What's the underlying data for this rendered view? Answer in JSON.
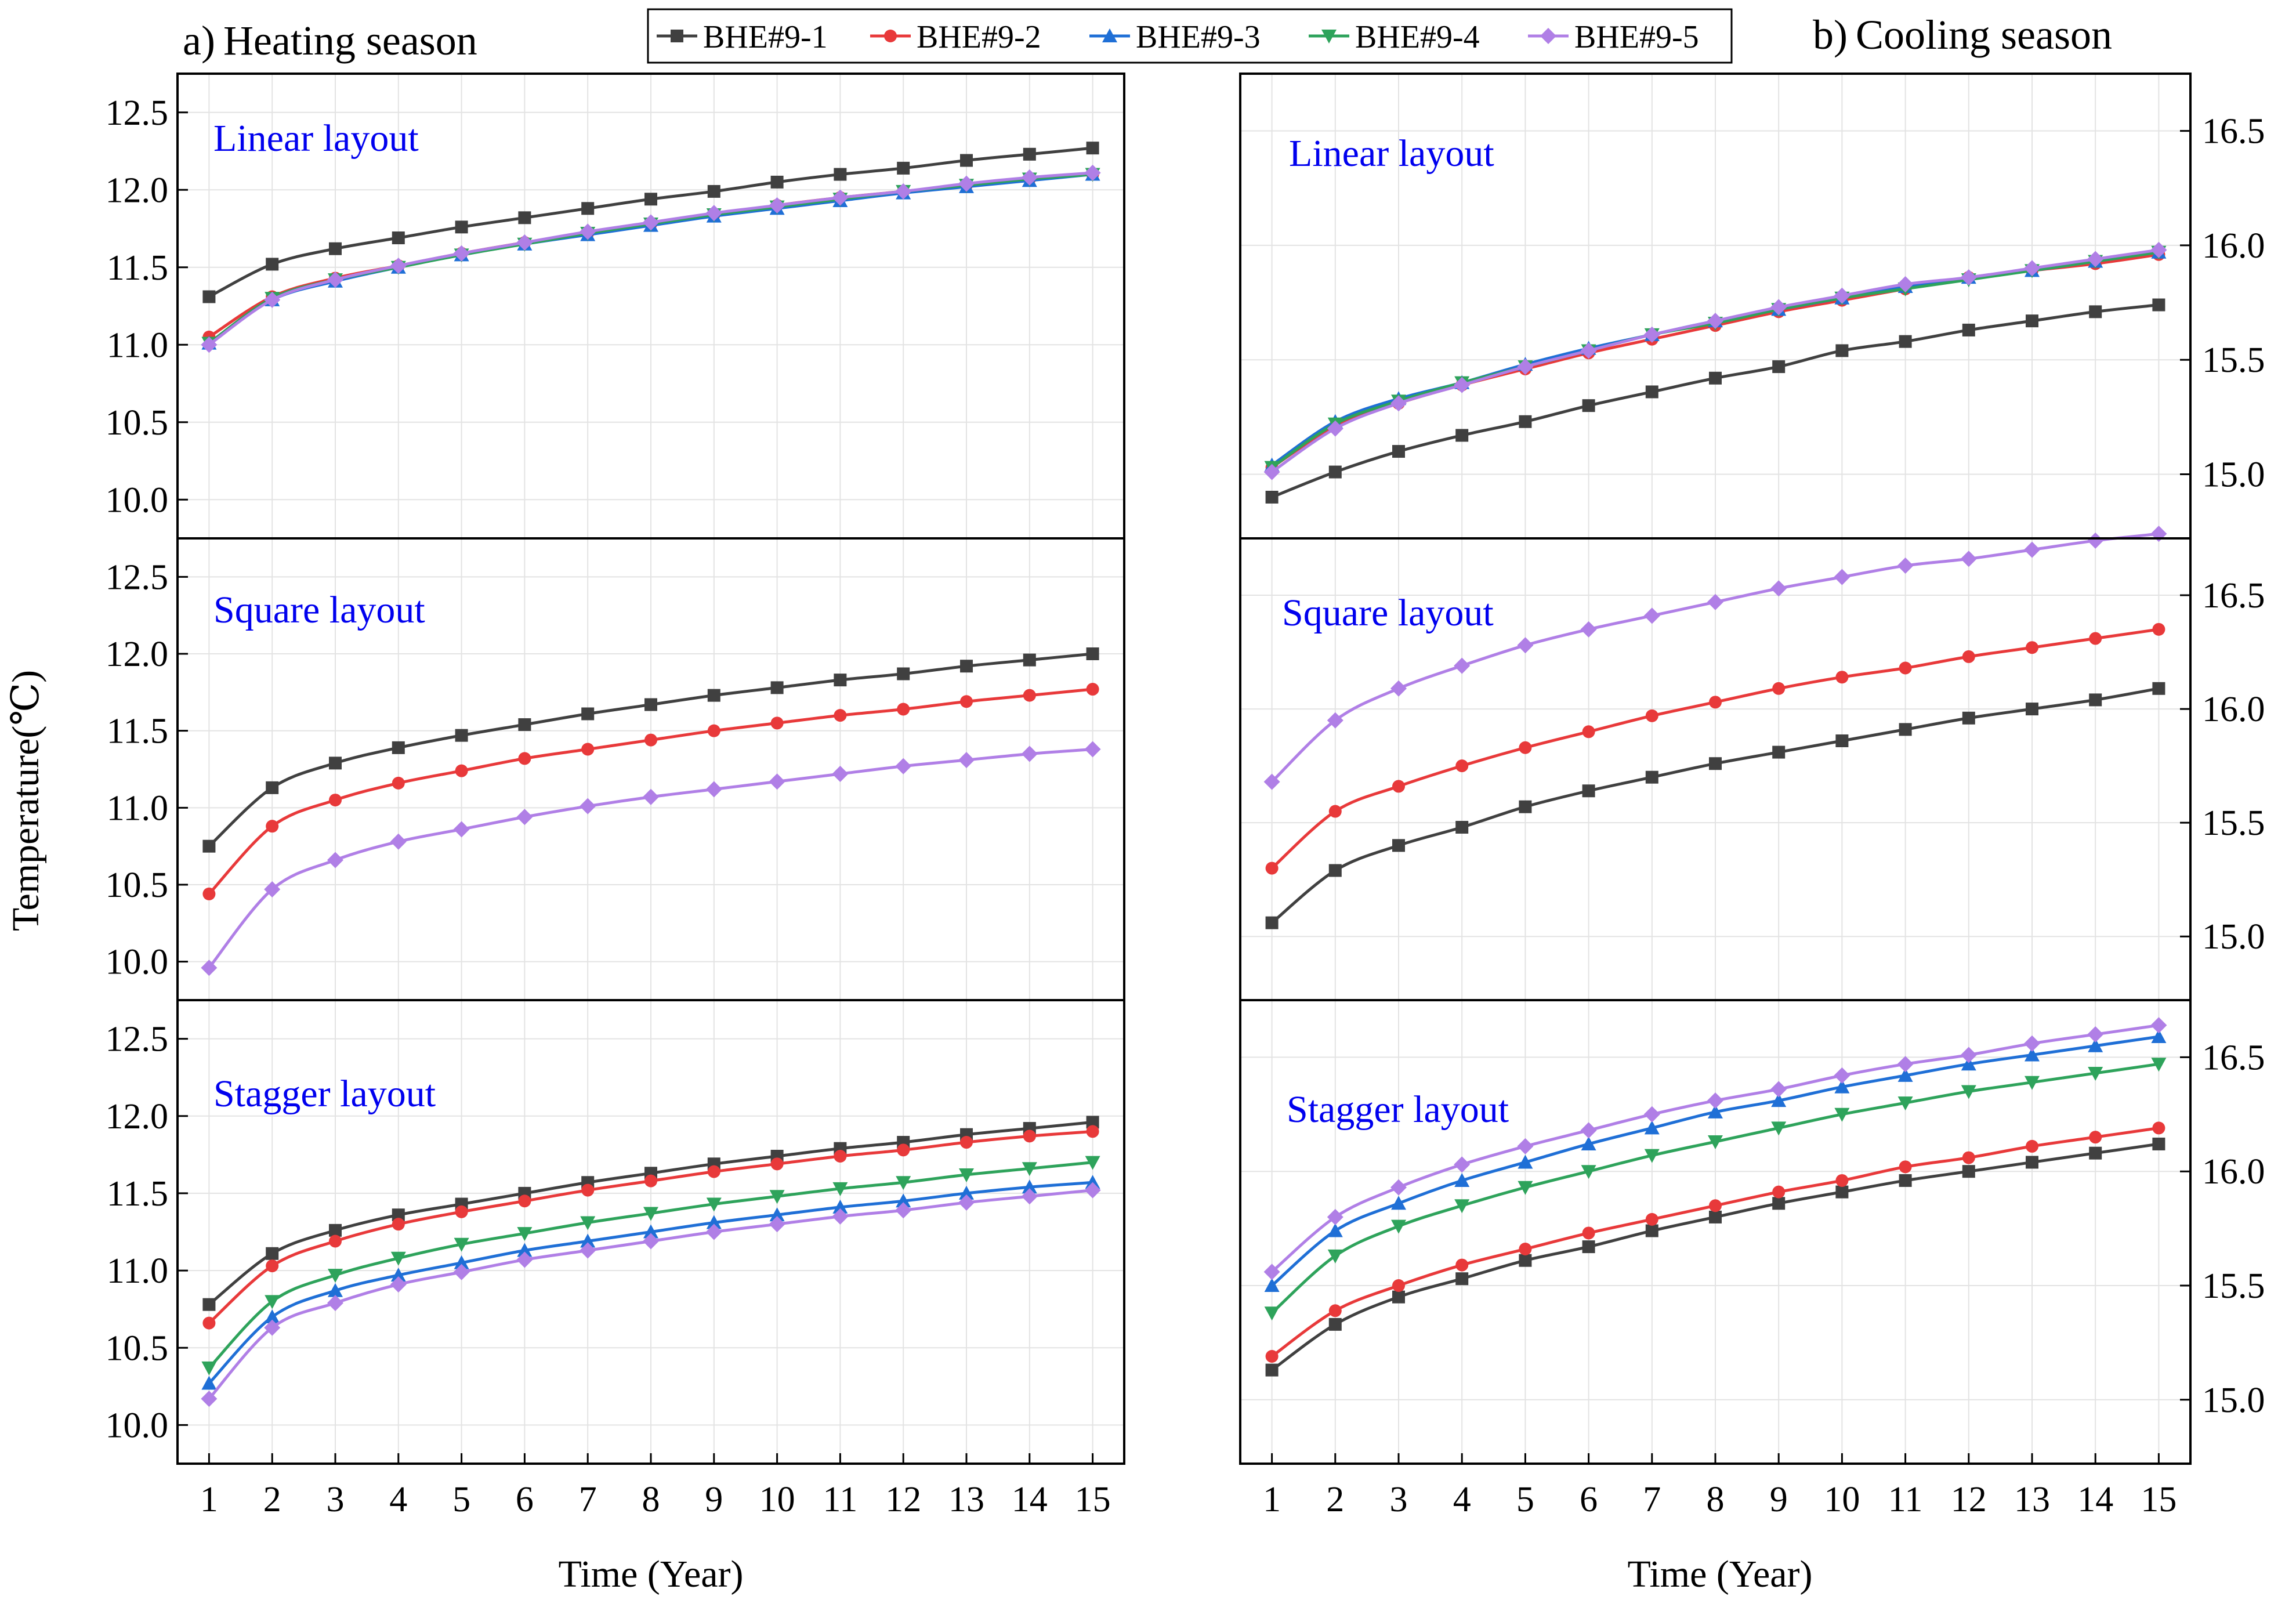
{
  "figure": {
    "ylabel": "Temperature(℃)",
    "xlabel_left": "Time (Year)",
    "xlabel_right": "Time (Year)"
  },
  "panels": {
    "left": {
      "prefix": "a)",
      "title": "Heating season"
    },
    "right": {
      "prefix": "b)",
      "title": "Cooling season"
    }
  },
  "legend": [
    {
      "name": "BHE#9-1",
      "color": "#404040",
      "marker": "square"
    },
    {
      "name": "BHE#9-2",
      "color": "#e8393a",
      "marker": "circle"
    },
    {
      "name": "BHE#9-3",
      "color": "#1f6fd6",
      "marker": "triangle-up"
    },
    {
      "name": "BHE#9-4",
      "color": "#2ea35b",
      "marker": "triangle-down"
    },
    {
      "name": "BHE#9-5",
      "color": "#b07fe6",
      "marker": "diamond"
    }
  ],
  "chart_data": [
    {
      "type": "line",
      "id": "heating-linear",
      "season": "Heating season",
      "layout": "Linear layout",
      "x": [
        1,
        2,
        3,
        4,
        5,
        6,
        7,
        8,
        9,
        10,
        11,
        12,
        13,
        14,
        15
      ],
      "ylim": [
        9.75,
        12.75
      ],
      "yticks": [
        "10.0",
        "10.5",
        "11.0",
        "11.5",
        "12.0",
        "12.5"
      ],
      "series": [
        {
          "name": "BHE#9-1",
          "values": [
            11.31,
            11.52,
            11.62,
            11.69,
            11.76,
            11.82,
            11.88,
            11.94,
            11.99,
            12.05,
            12.1,
            12.14,
            12.19,
            12.23,
            12.27
          ]
        },
        {
          "name": "BHE#9-2",
          "values": [
            11.05,
            11.31,
            11.43,
            11.51,
            11.59,
            11.66,
            11.72,
            11.78,
            11.84,
            11.9,
            11.95,
            11.99,
            12.03,
            12.07,
            12.1
          ]
        },
        {
          "name": "BHE#9-3",
          "values": [
            11.01,
            11.29,
            11.41,
            11.5,
            11.58,
            11.65,
            11.71,
            11.77,
            11.83,
            11.88,
            11.93,
            11.98,
            12.02,
            12.06,
            12.1
          ]
        },
        {
          "name": "BHE#9-4",
          "values": [
            11.01,
            11.3,
            11.42,
            11.5,
            11.58,
            11.65,
            11.72,
            11.78,
            11.84,
            11.89,
            11.94,
            11.99,
            12.03,
            12.07,
            12.1
          ]
        },
        {
          "name": "BHE#9-5",
          "values": [
            11.0,
            11.29,
            11.42,
            11.51,
            11.59,
            11.66,
            11.73,
            11.79,
            11.85,
            11.9,
            11.95,
            11.99,
            12.04,
            12.08,
            12.11
          ]
        }
      ]
    },
    {
      "type": "line",
      "id": "heating-square",
      "season": "Heating season",
      "layout": "Square layout",
      "x": [
        1,
        2,
        3,
        4,
        5,
        6,
        7,
        8,
        9,
        10,
        11,
        12,
        13,
        14,
        15
      ],
      "ylim": [
        9.75,
        12.75
      ],
      "yticks": [
        "10.0",
        "10.5",
        "11.0",
        "11.5",
        "12.0",
        "12.5"
      ],
      "series": [
        {
          "name": "BHE#9-1",
          "values": [
            10.75,
            11.13,
            11.29,
            11.39,
            11.47,
            11.54,
            11.61,
            11.67,
            11.73,
            11.78,
            11.83,
            11.87,
            11.92,
            11.96,
            12.0
          ]
        },
        {
          "name": "BHE#9-2",
          "values": [
            10.44,
            10.88,
            11.05,
            11.16,
            11.24,
            11.32,
            11.38,
            11.44,
            11.5,
            11.55,
            11.6,
            11.64,
            11.69,
            11.73,
            11.77
          ]
        },
        {
          "name": "BHE#9-5",
          "values": [
            9.96,
            10.47,
            10.66,
            10.78,
            10.86,
            10.94,
            11.01,
            11.07,
            11.12,
            11.17,
            11.22,
            11.27,
            11.31,
            11.35,
            11.38
          ]
        }
      ]
    },
    {
      "type": "line",
      "id": "heating-stagger",
      "season": "Heating season",
      "layout": "Stagger layout",
      "x": [
        1,
        2,
        3,
        4,
        5,
        6,
        7,
        8,
        9,
        10,
        11,
        12,
        13,
        14,
        15
      ],
      "ylim": [
        9.75,
        12.75
      ],
      "yticks": [
        "10.0",
        "10.5",
        "11.0",
        "11.5",
        "12.0",
        "12.5"
      ],
      "series": [
        {
          "name": "BHE#9-1",
          "values": [
            10.78,
            11.11,
            11.26,
            11.36,
            11.43,
            11.5,
            11.57,
            11.63,
            11.69,
            11.74,
            11.79,
            11.83,
            11.88,
            11.92,
            11.96
          ]
        },
        {
          "name": "BHE#9-2",
          "values": [
            10.66,
            11.03,
            11.19,
            11.3,
            11.38,
            11.45,
            11.52,
            11.58,
            11.64,
            11.69,
            11.74,
            11.78,
            11.83,
            11.87,
            11.9
          ]
        },
        {
          "name": "BHE#9-3",
          "values": [
            10.27,
            10.7,
            10.87,
            10.97,
            11.05,
            11.13,
            11.19,
            11.25,
            11.31,
            11.36,
            11.41,
            11.45,
            11.5,
            11.54,
            11.57
          ]
        },
        {
          "name": "BHE#9-4",
          "values": [
            10.37,
            10.8,
            10.97,
            11.08,
            11.17,
            11.24,
            11.31,
            11.37,
            11.43,
            11.48,
            11.53,
            11.57,
            11.62,
            11.66,
            11.7
          ]
        },
        {
          "name": "BHE#9-5",
          "values": [
            10.17,
            10.63,
            10.79,
            10.91,
            10.99,
            11.07,
            11.13,
            11.19,
            11.25,
            11.3,
            11.35,
            11.39,
            11.44,
            11.48,
            11.52
          ]
        }
      ]
    },
    {
      "type": "line",
      "id": "cooling-linear",
      "season": "Cooling season",
      "layout": "Linear layout",
      "x": [
        1,
        2,
        3,
        4,
        5,
        6,
        7,
        8,
        9,
        10,
        11,
        12,
        13,
        14,
        15
      ],
      "ylim": [
        14.72,
        16.75
      ],
      "yticks": [
        "15.0",
        "15.5",
        "16.0",
        "16.5"
      ],
      "series": [
        {
          "name": "BHE#9-1",
          "values": [
            14.9,
            15.01,
            15.1,
            15.17,
            15.23,
            15.3,
            15.36,
            15.42,
            15.47,
            15.54,
            15.58,
            15.63,
            15.67,
            15.71,
            15.74
          ]
        },
        {
          "name": "BHE#9-2",
          "values": [
            15.03,
            15.21,
            15.31,
            15.39,
            15.46,
            15.53,
            15.59,
            15.65,
            15.71,
            15.76,
            15.81,
            15.86,
            15.89,
            15.92,
            15.96
          ]
        },
        {
          "name": "BHE#9-3",
          "values": [
            15.04,
            15.23,
            15.33,
            15.4,
            15.48,
            15.55,
            15.61,
            15.67,
            15.72,
            15.77,
            15.82,
            15.86,
            15.89,
            15.93,
            15.97
          ]
        },
        {
          "name": "BHE#9-4",
          "values": [
            15.03,
            15.22,
            15.32,
            15.4,
            15.47,
            15.54,
            15.61,
            15.66,
            15.72,
            15.77,
            15.81,
            15.85,
            15.89,
            15.93,
            15.97
          ]
        },
        {
          "name": "BHE#9-5",
          "values": [
            15.01,
            15.2,
            15.31,
            15.39,
            15.47,
            15.54,
            15.61,
            15.67,
            15.73,
            15.78,
            15.83,
            15.86,
            15.9,
            15.94,
            15.98
          ]
        }
      ]
    },
    {
      "type": "line",
      "id": "cooling-square",
      "season": "Cooling season",
      "layout": "Square layout",
      "x": [
        1,
        2,
        3,
        4,
        5,
        6,
        7,
        8,
        9,
        10,
        11,
        12,
        13,
        14,
        15
      ],
      "ylim": [
        14.72,
        16.75
      ],
      "yticks": [
        "15.0",
        "15.5",
        "16.0",
        "16.5"
      ],
      "series": [
        {
          "name": "BHE#9-1",
          "values": [
            15.06,
            15.29,
            15.4,
            15.48,
            15.57,
            15.64,
            15.7,
            15.76,
            15.81,
            15.86,
            15.91,
            15.96,
            16.0,
            16.04,
            16.09
          ]
        },
        {
          "name": "BHE#9-2",
          "values": [
            15.3,
            15.55,
            15.66,
            15.75,
            15.83,
            15.9,
            15.97,
            16.03,
            16.09,
            16.14,
            16.18,
            16.23,
            16.27,
            16.31,
            16.35
          ]
        },
        {
          "name": "BHE#9-5",
          "values": [
            15.68,
            15.95,
            16.09,
            16.19,
            16.28,
            16.35,
            16.41,
            16.47,
            16.53,
            16.58,
            16.63,
            16.66,
            16.7,
            16.74,
            16.77
          ]
        }
      ]
    },
    {
      "type": "line",
      "id": "cooling-stagger",
      "season": "Cooling season",
      "layout": "Stagger layout",
      "x": [
        1,
        2,
        3,
        4,
        5,
        6,
        7,
        8,
        9,
        10,
        11,
        12,
        13,
        14,
        15
      ],
      "ylim": [
        14.72,
        16.75
      ],
      "yticks": [
        "15.0",
        "15.5",
        "16.0",
        "16.5"
      ],
      "series": [
        {
          "name": "BHE#9-1",
          "values": [
            15.13,
            15.33,
            15.45,
            15.53,
            15.61,
            15.67,
            15.74,
            15.8,
            15.86,
            15.91,
            15.96,
            16.0,
            16.04,
            16.08,
            16.12
          ]
        },
        {
          "name": "BHE#9-2",
          "values": [
            15.19,
            15.39,
            15.5,
            15.59,
            15.66,
            15.73,
            15.79,
            15.85,
            15.91,
            15.96,
            16.02,
            16.06,
            16.11,
            16.15,
            16.19
          ]
        },
        {
          "name": "BHE#9-3",
          "values": [
            15.5,
            15.74,
            15.86,
            15.96,
            16.04,
            16.12,
            16.19,
            16.26,
            16.31,
            16.37,
            16.42,
            16.47,
            16.51,
            16.55,
            16.59
          ]
        },
        {
          "name": "BHE#9-4",
          "values": [
            15.38,
            15.63,
            15.76,
            15.85,
            15.93,
            16.0,
            16.07,
            16.13,
            16.19,
            16.25,
            16.3,
            16.35,
            16.39,
            16.43,
            16.47
          ]
        },
        {
          "name": "BHE#9-5",
          "values": [
            15.56,
            15.8,
            15.93,
            16.03,
            16.11,
            16.18,
            16.25,
            16.31,
            16.36,
            16.42,
            16.47,
            16.51,
            16.56,
            16.6,
            16.64
          ]
        }
      ]
    }
  ]
}
